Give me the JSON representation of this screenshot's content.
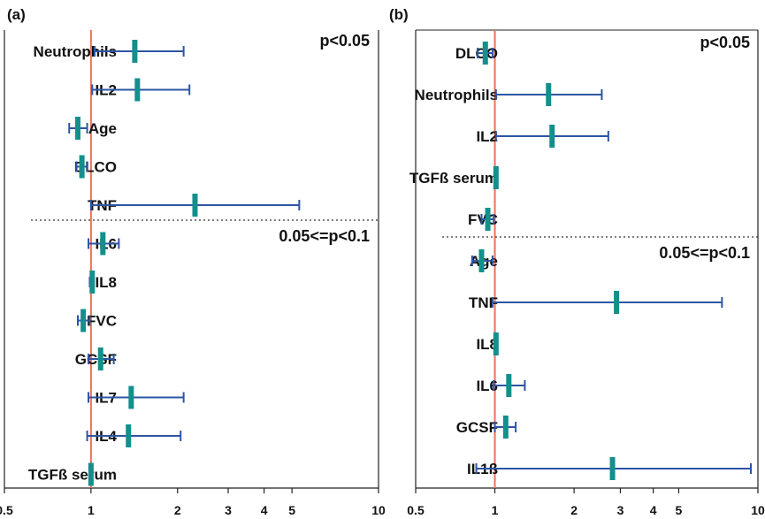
{
  "colors": {
    "ci_line": "#2e55a3",
    "point": "#138f8c",
    "reference_line": "#e8735a",
    "divider": "#333333"
  },
  "chart_data": [
    {
      "panel": "(a)",
      "type": "forest",
      "x_scale": "log",
      "xlim": [
        0.5,
        10
      ],
      "x_ticks": [
        "0.5",
        "1",
        "2",
        "3",
        "4",
        "5",
        "10"
      ],
      "reference_x": 1,
      "group_labels": [
        "p<0.05",
        "0.05<=p<0.1"
      ],
      "rows": [
        {
          "label": "Neutrophils",
          "estimate": 1.42,
          "lower": 1.03,
          "upper": 2.1,
          "group": 0
        },
        {
          "label": "IL2",
          "estimate": 1.45,
          "lower": 1.01,
          "upper": 2.2,
          "group": 0
        },
        {
          "label": "Age",
          "estimate": 0.9,
          "lower": 0.84,
          "upper": 0.97,
          "group": 0
        },
        {
          "label": "DLCO",
          "estimate": 0.93,
          "lower": 0.89,
          "upper": 0.97,
          "group": 0
        },
        {
          "label": "TNF",
          "estimate": 2.3,
          "lower": 1.0,
          "upper": 5.3,
          "group": 0
        },
        {
          "label": "IL6",
          "estimate": 1.1,
          "lower": 0.98,
          "upper": 1.25,
          "group": 1
        },
        {
          "label": "IL8",
          "estimate": 1.01,
          "lower": 0.99,
          "upper": 1.02,
          "group": 1
        },
        {
          "label": "FVC",
          "estimate": 0.94,
          "lower": 0.9,
          "upper": 0.99,
          "group": 1
        },
        {
          "label": "GCSF",
          "estimate": 1.08,
          "lower": 0.98,
          "upper": 1.2,
          "group": 1
        },
        {
          "label": "IL7",
          "estimate": 1.38,
          "lower": 0.98,
          "upper": 2.1,
          "group": 1
        },
        {
          "label": "IL4",
          "estimate": 1.35,
          "lower": 0.97,
          "upper": 2.05,
          "group": 1
        },
        {
          "label": "TGFß serum",
          "estimate": 1.0,
          "lower": 0.99,
          "upper": 1.01,
          "group": 1
        }
      ]
    },
    {
      "panel": "(b)",
      "type": "forest",
      "x_scale": "log",
      "xlim": [
        0.5,
        10
      ],
      "x_ticks": [
        "0.5",
        "1",
        "2",
        "3",
        "4",
        "5",
        "10"
      ],
      "reference_x": 1,
      "group_labels": [
        "p<0.05",
        "0.05<=p<0.1"
      ],
      "rows": [
        {
          "label": "DLCO",
          "estimate": 0.92,
          "lower": 0.86,
          "upper": 0.98,
          "group": 0
        },
        {
          "label": "Neutrophils",
          "estimate": 1.6,
          "lower": 1.01,
          "upper": 2.55,
          "group": 0
        },
        {
          "label": "IL2",
          "estimate": 1.65,
          "lower": 1.01,
          "upper": 2.7,
          "group": 0
        },
        {
          "label": "TGFß serum",
          "estimate": 1.01,
          "lower": 1.0,
          "upper": 1.02,
          "group": 0
        },
        {
          "label": "FVC",
          "estimate": 0.94,
          "lower": 0.89,
          "upper": 0.99,
          "group": 0
        },
        {
          "label": "Age",
          "estimate": 0.89,
          "lower": 0.82,
          "upper": 0.98,
          "group": 1
        },
        {
          "label": "TNF",
          "estimate": 2.9,
          "lower": 0.98,
          "upper": 7.3,
          "group": 1
        },
        {
          "label": "IL8",
          "estimate": 1.01,
          "lower": 1.0,
          "upper": 1.02,
          "group": 1
        },
        {
          "label": "IL6",
          "estimate": 1.13,
          "lower": 0.99,
          "upper": 1.3,
          "group": 1
        },
        {
          "label": "GCSF",
          "estimate": 1.1,
          "lower": 1.0,
          "upper": 1.2,
          "group": 1
        },
        {
          "label": "IL1ß",
          "estimate": 2.8,
          "lower": 0.85,
          "upper": 9.4,
          "group": 1
        }
      ]
    }
  ]
}
